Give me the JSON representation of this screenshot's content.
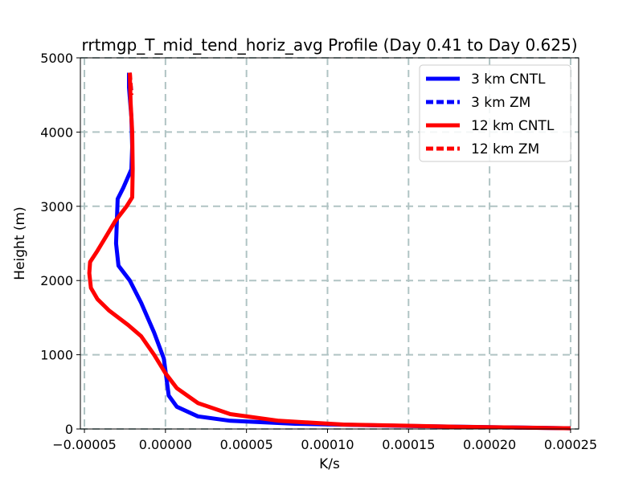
{
  "chart_data": {
    "type": "line",
    "title": "rrtmgp_T_mid_tend_horiz_avg Profile (Day 0.41 to Day 0.625)",
    "xlabel": "K/s",
    "ylabel": "Height (m)",
    "xlim": [
      -5.25e-05,
      0.000255
    ],
    "ylim": [
      0,
      5000
    ],
    "xticks": [
      -5e-05,
      0.0,
      5e-05,
      0.0001,
      0.00015,
      0.0002,
      0.00025
    ],
    "xtick_labels": [
      "−0.00005",
      "0.00000",
      "0.00005",
      "0.00010",
      "0.00015",
      "0.00020",
      "0.00025"
    ],
    "yticks": [
      0,
      1000,
      2000,
      3000,
      4000,
      5000
    ],
    "ytick_labels": [
      "0",
      "1000",
      "2000",
      "3000",
      "4000",
      "5000"
    ],
    "grid": true,
    "legend_position": "top-right",
    "series": [
      {
        "name": "3 km CNTL",
        "color": "#0000ff",
        "dash": "solid",
        "points": [
          [
            0.00025,
            10
          ],
          [
            0.00015,
            40
          ],
          [
            8e-05,
            70
          ],
          [
            4e-05,
            110
          ],
          [
            2e-05,
            170
          ],
          [
            7e-06,
            300
          ],
          [
            2e-06,
            450
          ],
          [
            5e-07,
            700
          ],
          [
            -1e-06,
            950
          ],
          [
            -7e-06,
            1300
          ],
          [
            -1.5e-05,
            1700
          ],
          [
            -2.2e-05,
            2000
          ],
          [
            -2.9e-05,
            2200
          ],
          [
            -3.05e-05,
            2500
          ],
          [
            -3e-05,
            2800
          ],
          [
            -2.95e-05,
            3100
          ],
          [
            -2.6e-05,
            3250
          ],
          [
            -2.1e-05,
            3500
          ],
          [
            -2.05e-05,
            3800
          ],
          [
            -2.1e-05,
            4200
          ],
          [
            -2.25e-05,
            4600
          ],
          [
            -2.25e-05,
            4800
          ]
        ]
      },
      {
        "name": "3 km ZM",
        "color": "#0000ff",
        "dash": "dashed",
        "points": [
          [
            -2.25e-05,
            4800
          ],
          [
            -2.2e-05,
            4700
          ],
          [
            -2.1e-05,
            4550
          ]
        ]
      },
      {
        "name": "12 km CNTL",
        "color": "#ff0000",
        "dash": "solid",
        "points": [
          [
            0.00025,
            10
          ],
          [
            0.00018,
            30
          ],
          [
            0.00011,
            60
          ],
          [
            7e-05,
            110
          ],
          [
            4e-05,
            200
          ],
          [
            2e-05,
            350
          ],
          [
            7e-06,
            550
          ],
          [
            0.0,
            750
          ],
          [
            -7e-06,
            1000
          ],
          [
            -1.5e-05,
            1250
          ],
          [
            -2.3e-05,
            1400
          ],
          [
            -3.5e-05,
            1600
          ],
          [
            -4.2e-05,
            1750
          ],
          [
            -4.6e-05,
            1900
          ],
          [
            -4.7e-05,
            2100
          ],
          [
            -4.65e-05,
            2250
          ],
          [
            -4.2e-05,
            2400
          ],
          [
            -3.65e-05,
            2600
          ],
          [
            -3.1e-05,
            2800
          ],
          [
            -2.4e-05,
            3000
          ],
          [
            -2.05e-05,
            3120
          ],
          [
            -2.02e-05,
            3500
          ],
          [
            -2.05e-05,
            4000
          ],
          [
            -2.15e-05,
            4400
          ],
          [
            -2.2e-05,
            4800
          ]
        ]
      },
      {
        "name": "12 km ZM",
        "color": "#ff0000",
        "dash": "dashed",
        "points": [
          [
            -2.2e-05,
            4800
          ],
          [
            -2.15e-05,
            4650
          ],
          [
            -2.1e-05,
            4500
          ]
        ]
      }
    ]
  }
}
